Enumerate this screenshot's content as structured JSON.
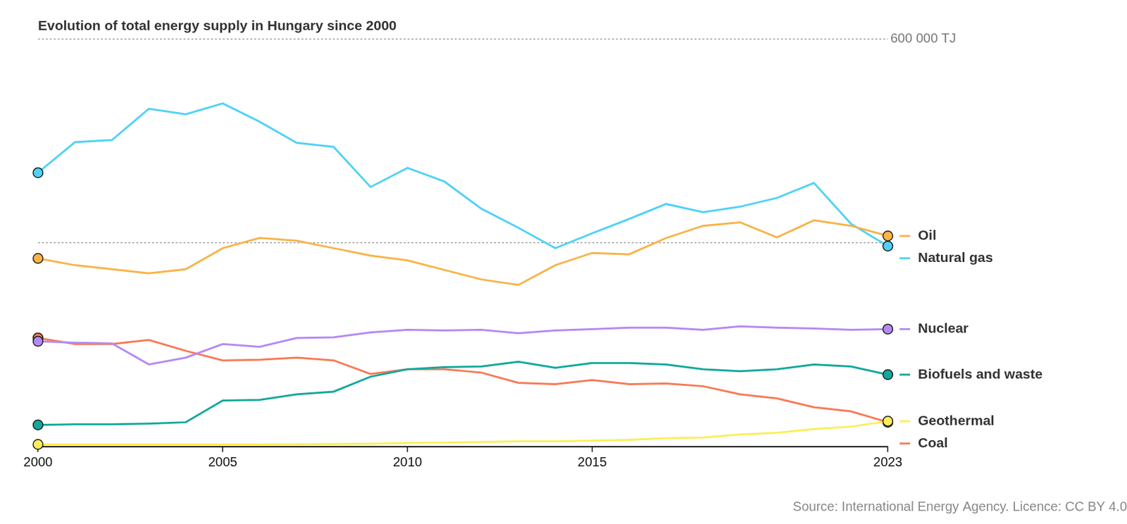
{
  "chart_data": {
    "type": "line",
    "title": "Evolution of total energy supply in Hungary since 2000",
    "source": "Source: International Energy Agency. Licence: CC BY 4.0",
    "x": [
      2000,
      2001,
      2002,
      2003,
      2004,
      2005,
      2006,
      2007,
      2008,
      2009,
      2010,
      2011,
      2012,
      2013,
      2014,
      2015,
      2016,
      2017,
      2018,
      2019,
      2020,
      2021,
      2022,
      2023
    ],
    "xlim": [
      2000,
      2023
    ],
    "xticks": [
      2000,
      2005,
      2010,
      2015,
      2023
    ],
    "ylim": [
      0,
      600000
    ],
    "yticks": [
      {
        "value": 0,
        "label": null
      },
      {
        "value": 300000,
        "label": null
      },
      {
        "value": 600000,
        "label": "600 000 TJ"
      }
    ],
    "grid": true,
    "legend": "right",
    "marker": "circle",
    "series": [
      {
        "name": "Oil",
        "color": "#f9b347",
        "values": [
          277000,
          267000,
          261000,
          255000,
          261000,
          292000,
          307000,
          303000,
          292000,
          281000,
          274000,
          260000,
          246000,
          238000,
          267000,
          285000,
          283000,
          307000,
          325000,
          330000,
          308000,
          333000,
          325000,
          310000
        ]
      },
      {
        "name": "Natural gas",
        "color": "#4fd2f7",
        "values": [
          403000,
          448000,
          451000,
          497000,
          489000,
          505000,
          478000,
          447000,
          441000,
          382000,
          410000,
          390000,
          350000,
          322000,
          292000,
          314000,
          335000,
          357000,
          345000,
          353000,
          366000,
          388000,
          328000,
          295000
        ]
      },
      {
        "name": "Nuclear",
        "color": "#b58af2",
        "values": [
          155000,
          153000,
          152000,
          121000,
          131000,
          151000,
          147000,
          160000,
          161000,
          168000,
          172000,
          171000,
          172000,
          167000,
          171000,
          173000,
          175000,
          175000,
          172000,
          177000,
          175000,
          174000,
          172000,
          173000
        ]
      },
      {
        "name": "Biofuels and waste",
        "color": "#13a89c",
        "values": [
          32000,
          33000,
          33000,
          34000,
          36000,
          68000,
          69000,
          77000,
          81000,
          103000,
          114000,
          117000,
          118000,
          125000,
          116000,
          123000,
          123000,
          121000,
          114000,
          111000,
          114000,
          121000,
          118000,
          106000
        ]
      },
      {
        "name": "Geothermal",
        "color": "#fcee5a",
        "values": [
          3400,
          3400,
          3400,
          3400,
          3400,
          3400,
          3400,
          3600,
          4000,
          4500,
          5500,
          6000,
          7000,
          8000,
          8000,
          9000,
          10000,
          12500,
          13500,
          18000,
          20500,
          26000,
          29500,
          37500
        ]
      },
      {
        "name": "Coal",
        "color": "#f77a55",
        "values": [
          160000,
          151000,
          151000,
          157000,
          141000,
          127000,
          128000,
          131000,
          127000,
          107000,
          114000,
          114000,
          109000,
          94000,
          92000,
          98000,
          92000,
          93000,
          89000,
          77000,
          71000,
          58000,
          52000,
          36000
        ]
      }
    ]
  }
}
